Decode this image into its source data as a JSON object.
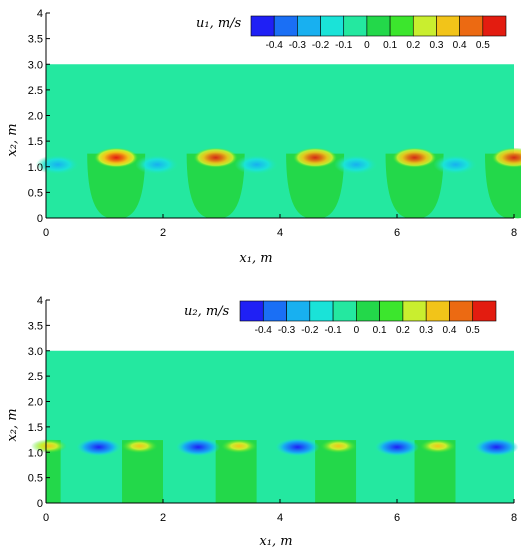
{
  "chart_data": [
    {
      "type": "heatmap",
      "legend_title": "u₁, m/s",
      "colorbar_labels": [
        "-0.4",
        "-0.3",
        "-0.2",
        "-0.1",
        "0",
        "0.1",
        "0.2",
        "0.3",
        "0.4",
        "0.5"
      ],
      "colorbar_colors": [
        "#1f20f5",
        "#1a6ff5",
        "#18b0f0",
        "#1ae3d8",
        "#24e8a0",
        "#23d84a",
        "#3ce62d",
        "#c9ee2f",
        "#f2c419",
        "#ec6a12",
        "#e31c10"
      ],
      "xlabel": "x₁, m",
      "ylabel": "x₂, m",
      "xlim": [
        0,
        8
      ],
      "ylim": [
        0,
        4
      ],
      "xticks": [
        "0",
        "2",
        "4",
        "6",
        "8"
      ],
      "yticks": [
        "0",
        "0.5",
        "1.0",
        "1.5",
        "2.0",
        "2.5",
        "3.0",
        "3.5",
        "4"
      ],
      "domain_top": 3.0,
      "interface": 1.1,
      "background_value": 0,
      "features": [
        {
          "kind": "positive_peak",
          "x": 1.2,
          "value": 0.5
        },
        {
          "kind": "positive_peak",
          "x": 2.9,
          "value": 0.4
        },
        {
          "kind": "positive_peak",
          "x": 4.6,
          "value": 0.4
        },
        {
          "kind": "positive_peak",
          "x": 6.3,
          "value": 0.4
        },
        {
          "kind": "positive_peak",
          "x": 8.0,
          "value": 0.4
        },
        {
          "kind": "negative_trough",
          "x": 0.2,
          "value": -0.2
        },
        {
          "kind": "negative_trough",
          "x": 1.9,
          "value": -0.2
        },
        {
          "kind": "negative_trough",
          "x": 3.6,
          "value": -0.2
        },
        {
          "kind": "negative_trough",
          "x": 5.3,
          "value": -0.2
        },
        {
          "kind": "negative_trough",
          "x": 7.0,
          "value": -0.2
        }
      ]
    },
    {
      "type": "heatmap",
      "legend_title": "u₂, m/s",
      "colorbar_labels": [
        "-0.4",
        "-0.3",
        "-0.2",
        "-0.1",
        "0",
        "0.1",
        "0.2",
        "0.3",
        "0.4",
        "0.5"
      ],
      "colorbar_colors": [
        "#1f20f5",
        "#1a6ff5",
        "#18b0f0",
        "#1ae3d8",
        "#24e8a0",
        "#23d84a",
        "#3ce62d",
        "#c9ee2f",
        "#f2c419",
        "#ec6a12",
        "#e31c10"
      ],
      "xlabel": "x₁, m",
      "ylabel": "x₂, m",
      "xlim": [
        0,
        8
      ],
      "ylim": [
        0,
        4
      ],
      "xticks": [
        "0",
        "2",
        "4",
        "6",
        "8"
      ],
      "yticks": [
        "0",
        "0.5",
        "1.0",
        "1.5",
        "2.0",
        "2.5",
        "3.0",
        "3.5",
        "4"
      ],
      "domain_top": 3.0,
      "interface": 1.2,
      "background_value": 0,
      "features": [
        {
          "kind": "positive_peak",
          "x": 0.05,
          "value": 0.3
        },
        {
          "kind": "negative_trough",
          "x": 0.9,
          "value": -0.4
        },
        {
          "kind": "positive_peak",
          "x": 1.6,
          "value": 0.3
        },
        {
          "kind": "negative_trough",
          "x": 2.6,
          "value": -0.4
        },
        {
          "kind": "positive_peak",
          "x": 3.3,
          "value": 0.3
        },
        {
          "kind": "negative_trough",
          "x": 4.3,
          "value": -0.4
        },
        {
          "kind": "positive_peak",
          "x": 5.0,
          "value": 0.3
        },
        {
          "kind": "negative_trough",
          "x": 6.0,
          "value": -0.4
        },
        {
          "kind": "positive_peak",
          "x": 6.7,
          "value": 0.3
        },
        {
          "kind": "negative_trough",
          "x": 7.7,
          "value": -0.4
        }
      ]
    }
  ]
}
